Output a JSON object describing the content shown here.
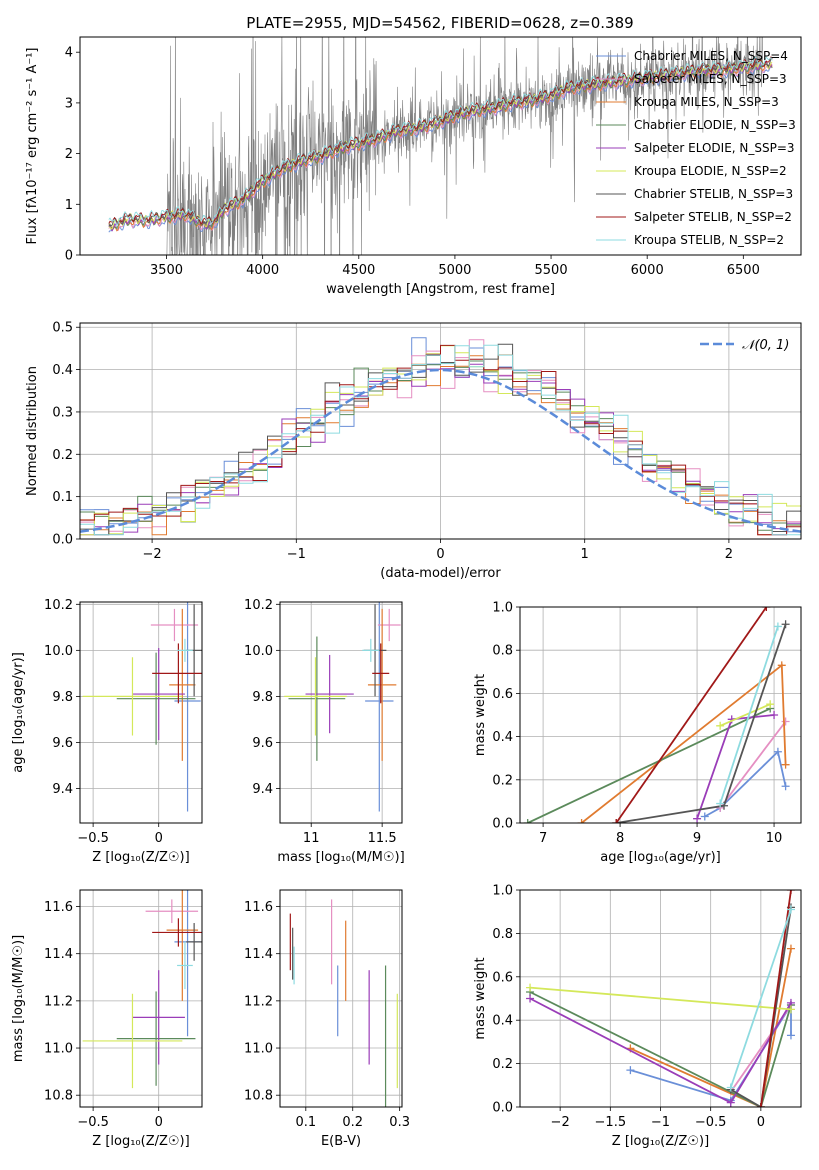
{
  "colors": {
    "chabrier_miles": "#6a8fd8",
    "salpeter_miles": "#e58fc2",
    "kroupa_miles": "#e07b30",
    "chabrier_elodie": "#5b8a5b",
    "salpeter_elodie": "#9a3db8",
    "kroupa_elodie": "#d4e85a",
    "chabrier_stelib": "#555555",
    "salpeter_stelib": "#a01818",
    "kroupa_stelib": "#8edbe0",
    "data": "#7f7f7f",
    "gauss": "#5b8bd9"
  },
  "chart_data": [
    {
      "id": "spectrum",
      "type": "line",
      "title": "PLATE=2955, MJD=54562, FIBERID=0628, z=0.389",
      "xlabel": "wavelength [Angstrom, rest frame]",
      "ylabel": "Flux [fλ10⁻¹⁷ erg cm⁻² s⁻¹ A⁻¹]",
      "xlim": [
        3050,
        6800
      ],
      "ylim": [
        0,
        4.3
      ],
      "xticks": [
        3500,
        4000,
        4500,
        5000,
        5500,
        6000,
        6500
      ],
      "yticks": [
        0,
        1,
        2,
        3,
        4
      ],
      "legend_position": "top-right",
      "legend": [
        {
          "label": "Chabrier MILES, N_SSP=4",
          "color_key": "chabrier_miles"
        },
        {
          "label": "Salpeter MILES, N_SSP=3",
          "color_key": "salpeter_miles"
        },
        {
          "label": "Kroupa MILES, N_SSP=3",
          "color_key": "kroupa_miles"
        },
        {
          "label": "Chabrier ELODIE, N_SSP=3",
          "color_key": "chabrier_elodie"
        },
        {
          "label": "Salpeter ELODIE, N_SSP=3",
          "color_key": "salpeter_elodie"
        },
        {
          "label": "Kroupa ELODIE, N_SSP=2",
          "color_key": "kroupa_elodie"
        },
        {
          "label": "Chabrier STELIB, N_SSP=3",
          "color_key": "chabrier_stelib"
        },
        {
          "label": "Salpeter STELIB, N_SSP=2",
          "color_key": "salpeter_stelib"
        },
        {
          "label": "Kroupa STELIB, N_SSP=2",
          "color_key": "kroupa_stelib"
        }
      ],
      "model_x": [
        3200,
        3300,
        3400,
        3500,
        3600,
        3700,
        3750,
        3800,
        3900,
        4000,
        4100,
        4200,
        4300,
        4400,
        4500,
        4600,
        4700,
        4800,
        4900,
        5000,
        5100,
        5200,
        5300,
        5400,
        5500,
        5600,
        5700,
        5800,
        5900,
        6000,
        6100,
        6200,
        6300,
        6400,
        6500,
        6600
      ],
      "model_y": [
        0.55,
        0.7,
        0.68,
        0.75,
        0.8,
        0.6,
        0.65,
        0.9,
        1.1,
        1.45,
        1.7,
        1.85,
        1.95,
        2.1,
        2.2,
        2.3,
        2.45,
        2.5,
        2.6,
        2.75,
        2.85,
        2.9,
        3.0,
        3.05,
        3.15,
        3.3,
        3.35,
        3.4,
        3.45,
        3.5,
        3.55,
        3.6,
        3.65,
        3.65,
        3.7,
        3.75
      ],
      "data_range": [
        3500,
        6600
      ]
    },
    {
      "id": "residuals",
      "type": "step",
      "xlabel": "(data-model)/error",
      "ylabel": "Normed distribution",
      "xlim": [
        -2.5,
        2.5
      ],
      "ylim": [
        0,
        0.51
      ],
      "xticks": [
        -2,
        -1,
        0,
        1,
        2
      ],
      "yticks": [
        0,
        0.1,
        0.2,
        0.3,
        0.4,
        0.5
      ],
      "legend_position": "top-right",
      "legend": [
        {
          "label": "𝒩(0, 1)",
          "color_key": "gauss"
        }
      ],
      "bin_width": 0.1
    },
    {
      "id": "age-Z",
      "type": "errorbar",
      "xlabel": "Z [log₁₀(Z/Z☉)]",
      "ylabel": "age  [log₁₀(age/yr)]",
      "xlim": [
        -0.6,
        0.33
      ],
      "ylim": [
        9.25,
        10.21
      ],
      "xticks": [
        -0.5,
        0.0
      ],
      "yticks": [
        9.4,
        9.6,
        9.8,
        10.0,
        10.2
      ],
      "points": [
        {
          "c": "chabrier_miles",
          "x": 0.22,
          "y": 9.78,
          "xe": 0.1,
          "ye": 0.48
        },
        {
          "c": "salpeter_miles",
          "x": 0.12,
          "y": 10.11,
          "xe": 0.18,
          "ye": 0.07
        },
        {
          "c": "kroupa_miles",
          "x": 0.18,
          "y": 9.85,
          "xe": 0.1,
          "ye": 0.33
        },
        {
          "c": "chabrier_elodie",
          "x": -0.02,
          "y": 9.79,
          "xe": 0.3,
          "ye": 0.2
        },
        {
          "c": "salpeter_elodie",
          "x": 0.0,
          "y": 9.81,
          "xe": 0.2,
          "ye": 0.2
        },
        {
          "c": "kroupa_elodie",
          "x": -0.2,
          "y": 9.8,
          "xe": 0.38,
          "ye": 0.17
        },
        {
          "c": "chabrier_stelib",
          "x": 0.27,
          "y": 10.0,
          "xe": 0.06,
          "ye": 0.2
        },
        {
          "c": "salpeter_stelib",
          "x": 0.15,
          "y": 9.9,
          "xe": 0.2,
          "ye": 0.13
        },
        {
          "c": "kroupa_stelib",
          "x": 0.2,
          "y": 10.0,
          "xe": 0.06,
          "ye": 0.05
        }
      ]
    },
    {
      "id": "age-mass",
      "type": "errorbar",
      "xlabel": "mass [log₁₀(M/M☉)]",
      "ylabel": "",
      "xlim": [
        10.78,
        11.64
      ],
      "ylim": [
        9.25,
        10.21
      ],
      "xticks": [
        11.0,
        11.5
      ],
      "yticks": [
        9.4,
        9.6,
        9.8,
        10.0,
        10.2
      ],
      "points": [
        {
          "c": "chabrier_miles",
          "x": 11.48,
          "y": 9.78,
          "xe": 0.1,
          "ye": 0.48
        },
        {
          "c": "salpeter_miles",
          "x": 11.55,
          "y": 10.11,
          "xe": 0.08,
          "ye": 0.07
        },
        {
          "c": "kroupa_miles",
          "x": 11.5,
          "y": 9.85,
          "xe": 0.1,
          "ye": 0.33
        },
        {
          "c": "chabrier_elodie",
          "x": 11.04,
          "y": 9.79,
          "xe": 0.2,
          "ye": 0.27
        },
        {
          "c": "salpeter_elodie",
          "x": 11.13,
          "y": 9.81,
          "xe": 0.17,
          "ye": 0.17
        },
        {
          "c": "kroupa_elodie",
          "x": 11.03,
          "y": 9.8,
          "xe": 0.22,
          "ye": 0.17
        },
        {
          "c": "chabrier_stelib",
          "x": 11.45,
          "y": 10.0,
          "xe": 0.08,
          "ye": 0.2
        },
        {
          "c": "salpeter_stelib",
          "x": 11.49,
          "y": 9.9,
          "xe": 0.06,
          "ye": 0.13
        },
        {
          "c": "kroupa_stelib",
          "x": 11.42,
          "y": 10.0,
          "xe": 0.06,
          "ye": 0.05
        }
      ]
    },
    {
      "id": "weight-age",
      "type": "line",
      "xlabel": "age  [log₁₀(age/yr)]",
      "ylabel": "mass weight",
      "xlim": [
        6.7,
        10.35
      ],
      "ylim": [
        0,
        1.0
      ],
      "xticks": [
        7,
        8,
        9,
        10
      ],
      "yticks": [
        0.0,
        0.2,
        0.4,
        0.6,
        0.8,
        1.0
      ],
      "series": [
        {
          "c": "chabrier_miles",
          "x": [
            9.1,
            9.3,
            10.05,
            10.15
          ],
          "y": [
            0.03,
            0.07,
            0.33,
            0.17
          ]
        },
        {
          "c": "salpeter_miles",
          "x": [
            9.3,
            10.15
          ],
          "y": [
            0.07,
            0.47
          ]
        },
        {
          "c": "kroupa_miles",
          "x": [
            7.5,
            10.1,
            10.15
          ],
          "y": [
            0.0,
            0.73,
            0.27
          ]
        },
        {
          "c": "chabrier_elodie",
          "x": [
            6.8,
            9.95
          ],
          "y": [
            0.0,
            0.53
          ]
        },
        {
          "c": "salpeter_elodie",
          "x": [
            9.0,
            9.45,
            10.0
          ],
          "y": [
            0.02,
            0.48,
            0.5
          ]
        },
        {
          "c": "kroupa_elodie",
          "x": [
            9.3,
            9.95
          ],
          "y": [
            0.45,
            0.55
          ]
        },
        {
          "c": "chabrier_stelib",
          "x": [
            7.95,
            9.35,
            10.15
          ],
          "y": [
            0.0,
            0.08,
            0.92
          ]
        },
        {
          "c": "salpeter_stelib",
          "x": [
            7.95,
            9.9
          ],
          "y": [
            0.0,
            1.0
          ]
        },
        {
          "c": "kroupa_stelib",
          "x": [
            9.3,
            10.05
          ],
          "y": [
            0.09,
            0.91
          ]
        }
      ]
    },
    {
      "id": "mass-Z",
      "type": "errorbar",
      "xlabel": "Z [log₁₀(Z/Z☉)]",
      "ylabel": "mass [log₁₀(M/M☉)]",
      "xlim": [
        -0.6,
        0.33
      ],
      "ylim": [
        10.75,
        11.67
      ],
      "xticks": [
        -0.5,
        0.0
      ],
      "yticks": [
        10.8,
        11.0,
        11.2,
        11.4,
        11.6
      ],
      "points": [
        {
          "c": "chabrier_miles",
          "x": 0.22,
          "y": 11.45,
          "xe": 0.1,
          "ye": 0.4
        },
        {
          "c": "salpeter_miles",
          "x": 0.1,
          "y": 11.58,
          "xe": 0.2,
          "ye": 0.05
        },
        {
          "c": "kroupa_miles",
          "x": 0.18,
          "y": 11.5,
          "xe": 0.12,
          "ye": 0.3
        },
        {
          "c": "chabrier_elodie",
          "x": -0.02,
          "y": 11.04,
          "xe": 0.3,
          "ye": 0.2
        },
        {
          "c": "salpeter_elodie",
          "x": 0.0,
          "y": 11.13,
          "xe": 0.2,
          "ye": 0.2
        },
        {
          "c": "kroupa_elodie",
          "x": -0.2,
          "y": 11.03,
          "xe": 0.38,
          "ye": 0.2
        },
        {
          "c": "chabrier_stelib",
          "x": 0.27,
          "y": 11.45,
          "xe": 0.06,
          "ye": 0.08
        },
        {
          "c": "salpeter_stelib",
          "x": 0.15,
          "y": 11.49,
          "xe": 0.2,
          "ye": 0.06
        },
        {
          "c": "kroupa_stelib",
          "x": 0.2,
          "y": 11.35,
          "xe": 0.06,
          "ye": 0.1
        }
      ]
    },
    {
      "id": "mass-ebv",
      "type": "errorbar",
      "xlabel": "E(B-V)",
      "ylabel": "",
      "xlim": [
        0.045,
        0.305
      ],
      "ylim": [
        10.75,
        11.67
      ],
      "xticks": [
        0.1,
        0.2,
        0.3
      ],
      "yticks": [
        10.8,
        11.0,
        11.2,
        11.4,
        11.6
      ],
      "points": [
        {
          "c": "chabrier_miles",
          "x": 0.168,
          "y": 11.2,
          "xe": 0,
          "ye": 0.15
        },
        {
          "c": "salpeter_miles",
          "x": 0.155,
          "y": 11.45,
          "xe": 0,
          "ye": 0.18
        },
        {
          "c": "kroupa_miles",
          "x": 0.185,
          "y": 11.37,
          "xe": 0,
          "ye": 0.17
        },
        {
          "c": "chabrier_elodie",
          "x": 0.27,
          "y": 11.05,
          "xe": 0,
          "ye": 0.3
        },
        {
          "c": "salpeter_elodie",
          "x": 0.235,
          "y": 11.13,
          "xe": 0,
          "ye": 0.2
        },
        {
          "c": "kroupa_elodie",
          "x": 0.295,
          "y": 11.03,
          "xe": 0,
          "ye": 0.2
        },
        {
          "c": "chabrier_stelib",
          "x": 0.072,
          "y": 11.4,
          "xe": 0,
          "ye": 0.11
        },
        {
          "c": "salpeter_stelib",
          "x": 0.067,
          "y": 11.45,
          "xe": 0,
          "ye": 0.12
        },
        {
          "c": "kroupa_stelib",
          "x": 0.075,
          "y": 11.35,
          "xe": 0,
          "ye": 0.08
        }
      ]
    },
    {
      "id": "weight-Z",
      "type": "line",
      "xlabel": "Z [log₁₀(Z/Z☉)]",
      "ylabel": "mass weight",
      "xlim": [
        -2.4,
        0.4
      ],
      "ylim": [
        0,
        1.0
      ],
      "xticks": [
        -2.0,
        -1.5,
        -1.0,
        -0.5,
        0.0
      ],
      "yticks": [
        0.0,
        0.2,
        0.4,
        0.6,
        0.8,
        1.0
      ],
      "series": [
        {
          "c": "chabrier_miles",
          "x": [
            -1.3,
            -0.3,
            0.3,
            0.3
          ],
          "y": [
            0.17,
            0.03,
            0.47,
            0.33
          ]
        },
        {
          "c": "salpeter_miles",
          "x": [
            -0.3,
            0.3
          ],
          "y": [
            0.07,
            0.47
          ]
        },
        {
          "c": "kroupa_miles",
          "x": [
            -1.3,
            0.0,
            0.3
          ],
          "y": [
            0.27,
            0.0,
            0.73
          ]
        },
        {
          "c": "chabrier_elodie",
          "x": [
            -2.3,
            0.0,
            0.3
          ],
          "y": [
            0.53,
            0.0,
            0.47
          ]
        },
        {
          "c": "salpeter_elodie",
          "x": [
            -2.3,
            -0.3,
            0.3
          ],
          "y": [
            0.5,
            0.02,
            0.48
          ]
        },
        {
          "c": "kroupa_elodie",
          "x": [
            -2.3,
            0.3
          ],
          "y": [
            0.55,
            0.45
          ]
        },
        {
          "c": "chabrier_stelib",
          "x": [
            -0.3,
            0.0,
            0.3
          ],
          "y": [
            0.08,
            0.0,
            0.92
          ]
        },
        {
          "c": "salpeter_stelib",
          "x": [
            0.0,
            0.3
          ],
          "y": [
            0.0,
            1.0
          ]
        },
        {
          "c": "kroupa_stelib",
          "x": [
            -0.3,
            0.3
          ],
          "y": [
            0.09,
            0.91
          ]
        }
      ]
    }
  ]
}
